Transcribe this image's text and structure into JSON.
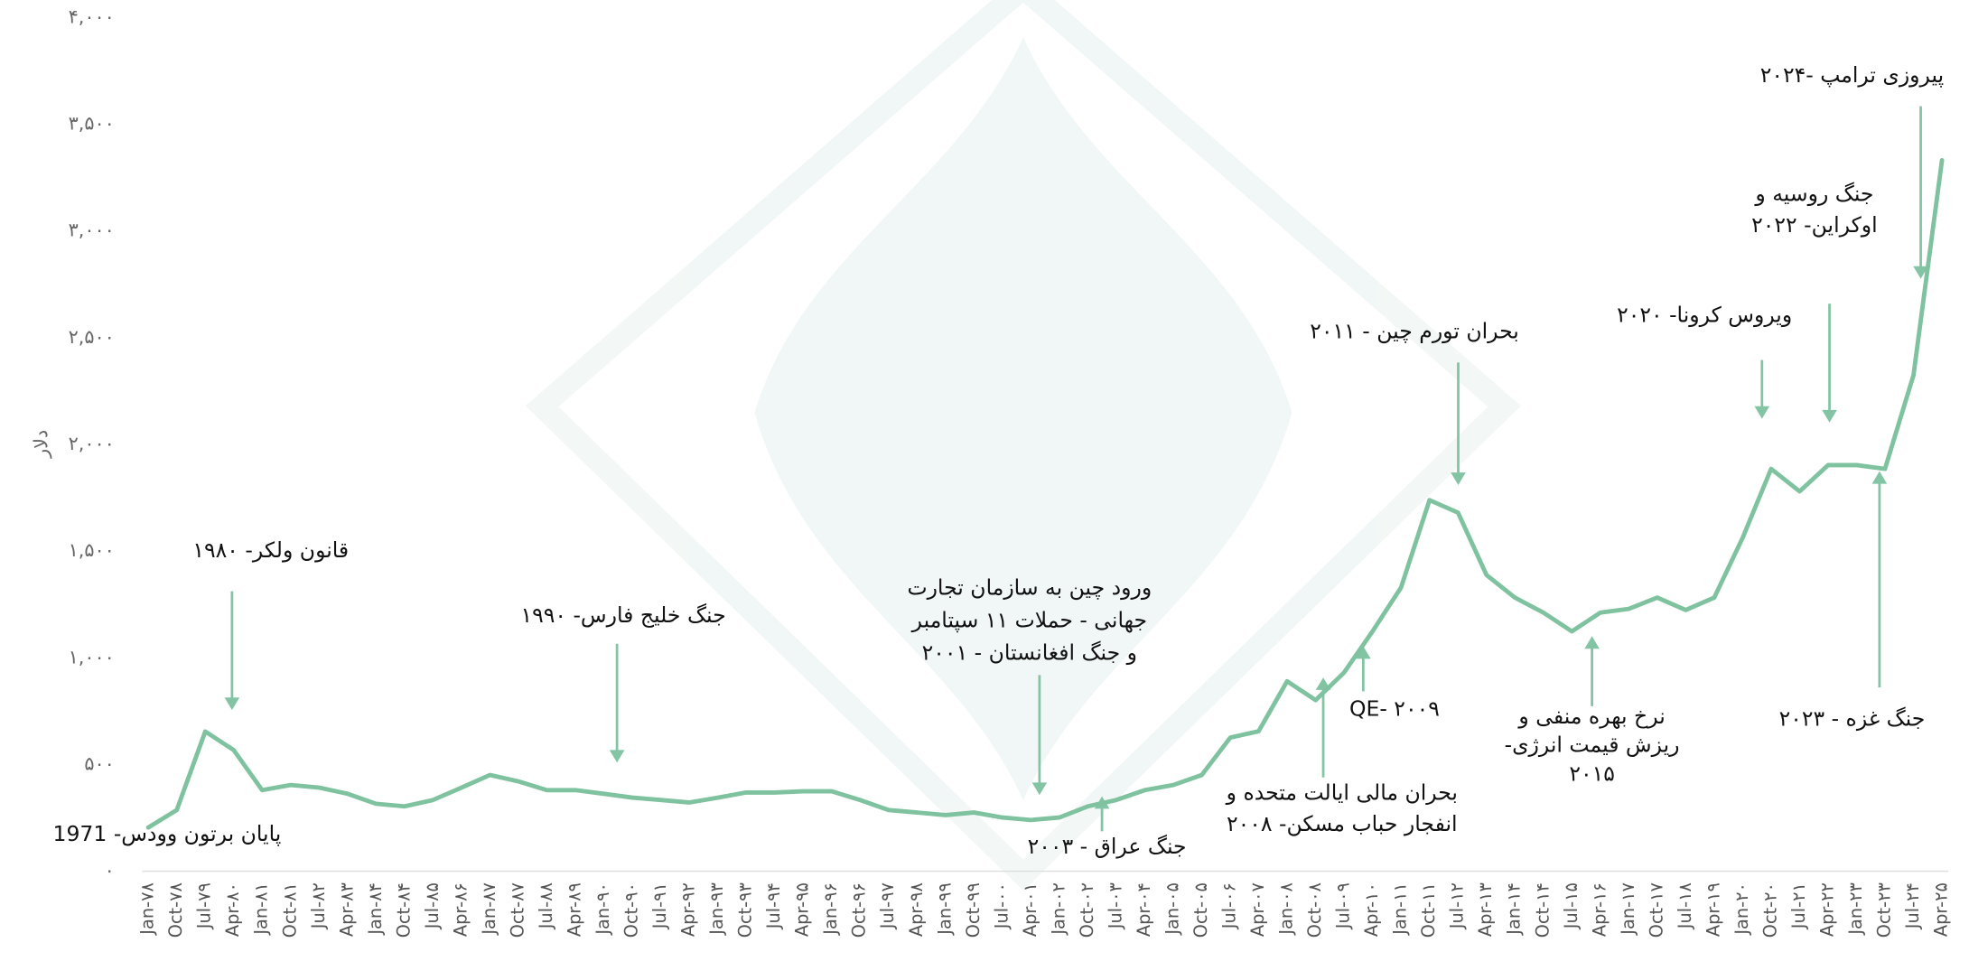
{
  "chart_data": {
    "type": "line",
    "y_label": "دلار",
    "categories": [
      "Jan-۷۸",
      "Oct-۷۸",
      "Jul-۷۹",
      "Apr-۸۰",
      "Jan-۸۱",
      "Oct-۸۱",
      "Jul-۸۲",
      "Apr-۸۳",
      "Jan-۸۴",
      "Oct-۸۴",
      "Jul-۸۵",
      "Apr-۸۶",
      "Jan-۸۷",
      "Oct-۸۷",
      "Jul-۸۸",
      "Apr-۸۹",
      "Jan-۹۰",
      "Oct-۹۰",
      "Jul-۹۱",
      "Apr-۹۲",
      "Jan-۹۳",
      "Oct-۹۳",
      "Jul-۹۴",
      "Apr-۹۵",
      "Jan-۹۶",
      "Oct-۹۶",
      "Jul-۹۷",
      "Apr-۹۸",
      "Jan-۹۹",
      "Oct-۹۹",
      "Jul-۰۰",
      "Apr-۰۱",
      "Jan-۰۲",
      "Oct-۰۲",
      "Jul-۰۳",
      "Apr-۰۴",
      "Jan-۰۵",
      "Oct-۰۵",
      "Jul-۰۶",
      "Apr-۰۷",
      "Jan-۰۸",
      "Oct-۰۸",
      "Jul-۰۹",
      "Apr-۱۰",
      "Jan-۱۱",
      "Oct-۱۱",
      "Jul-۱۲",
      "Apr-۱۳",
      "Jan-۱۴",
      "Oct-۱۴",
      "Jul-۱۵",
      "Apr-۱۶",
      "Jan-۱۷",
      "Oct-۱۷",
      "Jul-۱۸",
      "Apr-۱۹",
      "Jan-۲۰",
      "Oct-۲۰",
      "Jul-۲۱",
      "Apr-۲۲",
      "Jan-۲۳",
      "Oct-۲۳",
      "Jul-۲۴",
      "Apr-۲۵"
    ],
    "values": [
      205,
      287,
      655,
      568,
      380,
      404,
      392,
      363,
      316,
      304,
      334,
      392,
      451,
      421,
      380,
      380,
      363,
      345,
      334,
      322,
      345,
      369,
      369,
      375,
      375,
      334,
      287,
      275,
      263,
      275,
      252,
      240,
      252,
      304,
      334,
      380,
      404,
      451,
      626,
      656,
      890,
      802,
      931,
      1124,
      1329,
      1739,
      1680,
      1388,
      1282,
      1212,
      1124,
      1212,
      1229,
      1282,
      1224,
      1282,
      1563,
      1885,
      1780,
      1903,
      1903,
      1885,
      2324,
      3331
    ],
    "color": "#7fc29f",
    "ylim": [
      0,
      4000
    ],
    "yticks": [
      {
        "value": 0,
        "label": "۰"
      },
      {
        "value": 500,
        "label": "۵۰۰"
      },
      {
        "value": 1000,
        "label": "۱,۰۰۰"
      },
      {
        "value": 1500,
        "label": "۱,۵۰۰"
      },
      {
        "value": 2000,
        "label": "۲,۰۰۰"
      },
      {
        "value": 2500,
        "label": "۲,۵۰۰"
      },
      {
        "value": 3000,
        "label": "۳,۰۰۰"
      },
      {
        "value": 3500,
        "label": "۳,۵۰۰"
      },
      {
        "value": 4000,
        "label": "۴,۰۰۰"
      }
    ],
    "grid": false,
    "annotations": [
      [
        "پایان برتون وودس- 1971"
      ],
      [
        "قانون ولکر- ۱۹۸۰"
      ],
      [
        "جنگ خلیج فارس- ۱۹۹۰"
      ],
      [
        "ورود چین به سازمان تجارت",
        "جهانی - حملات ۱۱ سپتامبر",
        "و جنگ افغانستان - ۲۰۰۱"
      ],
      [
        "جنگ عراق - ۲۰۰۳"
      ],
      [
        "بحران مالی ایالت متحده و",
        "انفجار حباب مسکن- ۲۰۰۸"
      ],
      [
        "QE- ۲۰۰۹"
      ],
      [
        "بحران تورم چین - ۲۰۱۱"
      ],
      [
        "نرخ بهره منفی و",
        "ریزش قیمت انرژی-",
        "۲۰۱۵"
      ],
      [
        "ویروس کرونا- ۲۰۲۰"
      ],
      [
        "جنگ روسیه و",
        "اوکراین- ۲۰۲۲"
      ],
      [
        "پیروزی ترامپ -۲۰۲۴"
      ],
      [
        "جنگ غزه - ۲۰۲۳"
      ]
    ]
  }
}
